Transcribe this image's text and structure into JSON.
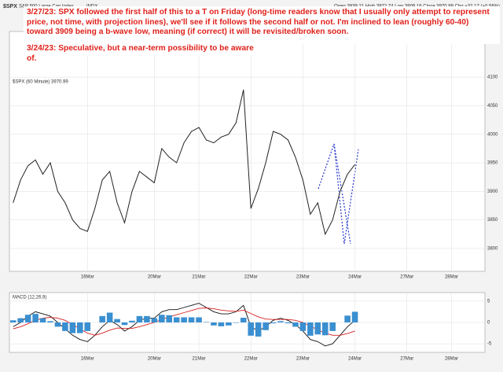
{
  "header": {
    "symbol": "$SPX",
    "name": "S&P 500 Large Cap Index",
    "exchange": "INDX",
    "quote": "Open 3939.21  High 3972.74  Low 3909.16  Close 3970.99  Chg +32.17 (+0.56%)"
  },
  "annotations": [
    "3/27/23:  SPX followed the first half of this to a T on Friday (long-time readers know that I usually only attempt to represent price, not time, with projection lines), we'll see if it follows the second half or not.  I'm inclined to lean (roughly 60-40) toward 3909 being a b-wave low, meaning (if correct) it will be revisited/broken soon.",
    "3/24/23:  Speculative, but a near-term possibility to be aware of."
  ],
  "chart_data": [
    {
      "type": "line",
      "legend": "$SPX (60 Minute) 3970.99",
      "categories": [
        null,
        null,
        null,
        null,
        null,
        null,
        null,
        null,
        null,
        null,
        "16Mar",
        null,
        null,
        null,
        null,
        null,
        null,
        null,
        null,
        "20Mar",
        null,
        null,
        null,
        null,
        null,
        "21Mar",
        null,
        null,
        null,
        null,
        null,
        null,
        "22Mar",
        null,
        null,
        null,
        null,
        null,
        null,
        "23Mar",
        null,
        null,
        null,
        null,
        null,
        null,
        "24Mar",
        null,
        null,
        null,
        null,
        null,
        null,
        "27Mar",
        null,
        null,
        null,
        null,
        null,
        "28Mar",
        null,
        null,
        null,
        null
      ],
      "series": [
        {
          "name": "$SPX",
          "color": "#222222",
          "values": [
            3880,
            3920,
            3945,
            3955,
            3930,
            3950,
            3900,
            3880,
            3850,
            3835,
            3830,
            3870,
            3920,
            3935,
            3880,
            3845,
            3900,
            3935,
            3925,
            3915,
            3975,
            3960,
            3950,
            3985,
            4005,
            4012,
            3990,
            3985,
            3995,
            4000,
            4020,
            4078,
            3870,
            3905,
            3950,
            4005,
            4000,
            3990,
            3960,
            3920,
            3860,
            3880,
            3825,
            3850,
            3900,
            3930,
            3947,
            null,
            null,
            null,
            null,
            null,
            null,
            null,
            null,
            null,
            null,
            null,
            null,
            null,
            null,
            null,
            null,
            null
          ]
        }
      ],
      "ylim": [
        3760,
        4180
      ],
      "yticks": [
        3800,
        3850,
        3900,
        3950,
        4000,
        4050,
        4100
      ],
      "grid": true
    },
    {
      "type": "line",
      "legend": "MACD (12,26,9)",
      "series": [
        {
          "name": "MACD",
          "color": "#111111",
          "kind": "line",
          "values": [
            -1,
            0,
            1.5,
            2.5,
            2,
            1.5,
            0,
            -1.5,
            -3,
            -4,
            -4.5,
            -3,
            -1,
            0.5,
            -0.5,
            -2,
            -1,
            0.5,
            1,
            1,
            2.5,
            3,
            3,
            3.5,
            4,
            4.5,
            3.5,
            2.5,
            2,
            2,
            2.5,
            4,
            -1,
            -2,
            -1,
            0.5,
            1,
            0.5,
            -0.5,
            -2,
            -4,
            -4.5,
            -5.5,
            -5,
            -3,
            -1,
            0.5
          ]
        },
        {
          "name": "Signal",
          "color": "#d62020",
          "kind": "line",
          "values": [
            -1.5,
            -1,
            -0.3,
            0.5,
            1,
            1.2,
            1,
            0.5,
            -0.5,
            -1.5,
            -2.5,
            -3,
            -2.5,
            -1.8,
            -1.3,
            -1.4,
            -1.4,
            -1,
            -0.5,
            0,
            0.7,
            1.3,
            1.8,
            2.3,
            2.8,
            3.3,
            3.4,
            3.2,
            2.9,
            2.7,
            2.6,
            2.9,
            2.1,
            1.3,
            0.8,
            0.7,
            0.7,
            0.7,
            0.5,
            0,
            -0.9,
            -1.7,
            -2.5,
            -3,
            -3,
            -2.6,
            -2
          ]
        },
        {
          "name": "Histogram",
          "color": "#3a8fd0",
          "kind": "bar",
          "values": [
            0.5,
            1,
            1.8,
            2,
            1,
            0.3,
            -1,
            -2,
            -2.5,
            -2.5,
            -2,
            0,
            1.5,
            2.3,
            0.8,
            -0.6,
            0.4,
            1.5,
            1.5,
            1,
            1.8,
            1.7,
            1.2,
            1.2,
            1.2,
            1.2,
            0.1,
            -0.7,
            -0.9,
            -0.7,
            -0.1,
            1.1,
            -3.1,
            -3.3,
            -1.8,
            -0.2,
            0.3,
            -0.2,
            -1,
            -2,
            -3.1,
            -2.8,
            -3,
            -2,
            0,
            1.6,
            2.5
          ]
        }
      ],
      "ylim": [
        -7,
        7
      ],
      "yticks": [
        -5,
        0,
        5
      ],
      "grid": true
    }
  ]
}
